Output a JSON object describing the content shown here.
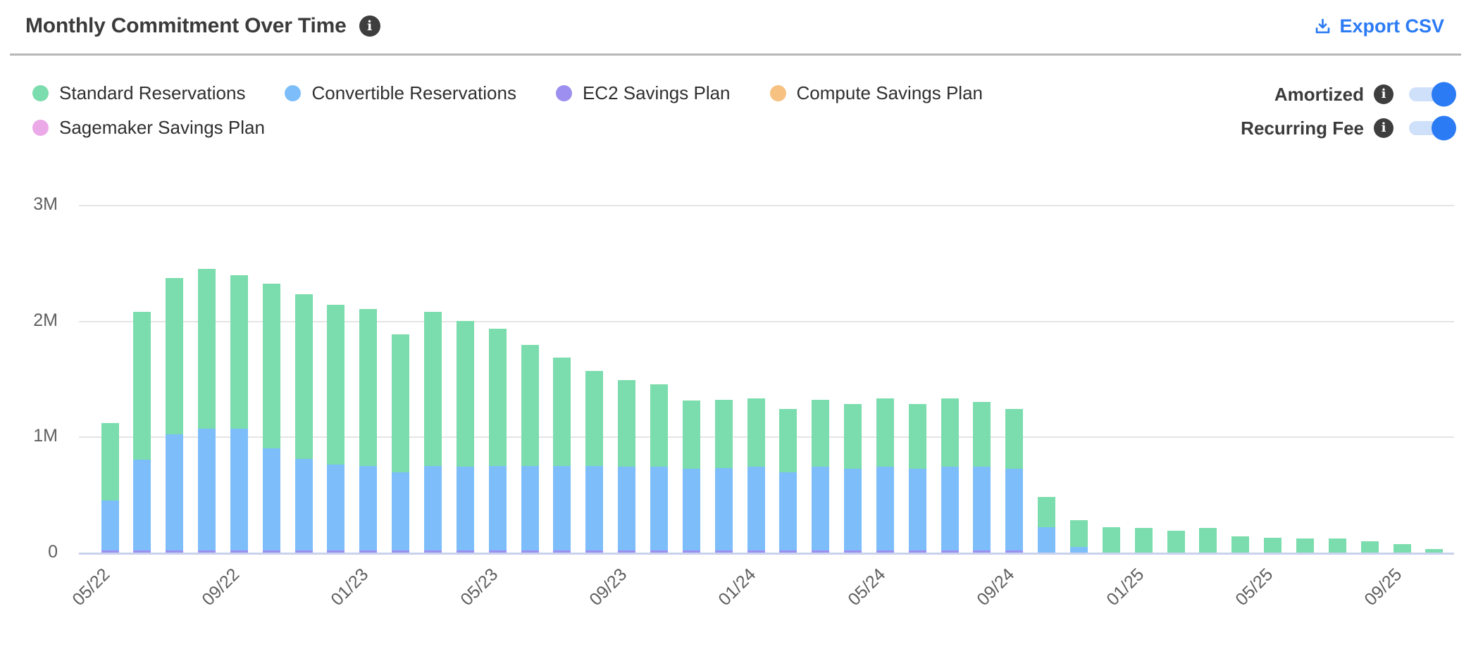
{
  "icons": {
    "info": "i"
  },
  "header": {
    "title": "Monthly Commitment Over Time",
    "export_label": "Export CSV",
    "export_color": "#2b7bf4"
  },
  "controls": {
    "toggles": [
      {
        "label": "Amortized",
        "state": "on"
      },
      {
        "label": "Recurring Fee",
        "state": "on"
      }
    ],
    "toggle_on_color": "#2b7bf4"
  },
  "chart_data": {
    "type": "bar",
    "stacked": true,
    "title": "Monthly Commitment Over Time",
    "value_unit": "millions",
    "ylim": [
      0,
      3
    ],
    "y_ticks": [
      "0",
      "1M",
      "2M",
      "3M"
    ],
    "grid": "horizontal",
    "legend_position": "top-left",
    "categories": [
      "05/22",
      "06/22",
      "07/22",
      "08/22",
      "09/22",
      "10/22",
      "11/22",
      "12/22",
      "01/23",
      "02/23",
      "03/23",
      "04/23",
      "05/23",
      "06/23",
      "07/23",
      "08/23",
      "09/23",
      "10/23",
      "11/23",
      "12/23",
      "01/24",
      "02/24",
      "03/24",
      "04/24",
      "05/24",
      "06/24",
      "07/24",
      "08/24",
      "09/24",
      "10/24",
      "11/24",
      "12/24",
      "01/25",
      "02/25",
      "03/25",
      "04/25",
      "05/25",
      "06/25",
      "07/25",
      "08/25",
      "09/25",
      "10/25"
    ],
    "x_tick_labels_shown": [
      "05/22",
      "09/22",
      "01/23",
      "05/23",
      "09/23",
      "01/24",
      "05/24",
      "09/24",
      "01/25",
      "05/25",
      "09/25"
    ],
    "stack_order_bottom_to_top": [
      "EC2 Savings Plan",
      "Convertible Reservations",
      "Standard Reservations",
      "Compute Savings Plan",
      "Sagemaker Savings Plan"
    ],
    "series": [
      {
        "name": "Standard Reservations",
        "color": "#7bdcad",
        "values": [
          0.67,
          1.28,
          1.35,
          1.38,
          1.32,
          1.42,
          1.42,
          1.38,
          1.35,
          1.19,
          1.33,
          1.26,
          1.18,
          1.04,
          0.93,
          0.82,
          0.75,
          0.71,
          0.59,
          0.59,
          0.59,
          0.55,
          0.58,
          0.56,
          0.59,
          0.56,
          0.59,
          0.56,
          0.52,
          0.26,
          0.23,
          0.22,
          0.21,
          0.19,
          0.21,
          0.14,
          0.13,
          0.12,
          0.12,
          0.1,
          0.07,
          0.03
        ]
      },
      {
        "name": "Convertible Reservations",
        "color": "#7dbefa",
        "values": [
          0.43,
          0.78,
          1.0,
          1.05,
          1.05,
          0.88,
          0.79,
          0.74,
          0.73,
          0.67,
          0.73,
          0.72,
          0.73,
          0.73,
          0.73,
          0.73,
          0.72,
          0.72,
          0.7,
          0.71,
          0.72,
          0.67,
          0.72,
          0.7,
          0.72,
          0.7,
          0.72,
          0.72,
          0.7,
          0.22,
          0.05,
          0,
          0,
          0,
          0,
          0,
          0,
          0,
          0,
          0,
          0,
          0
        ]
      },
      {
        "name": "EC2 Savings Plan",
        "color": "#9c8ff0",
        "values": [
          0.02,
          0.02,
          0.02,
          0.02,
          0.02,
          0.02,
          0.02,
          0.02,
          0.02,
          0.02,
          0.02,
          0.02,
          0.02,
          0.02,
          0.02,
          0.02,
          0.02,
          0.02,
          0.02,
          0.02,
          0.02,
          0.02,
          0.02,
          0.02,
          0.02,
          0.02,
          0.02,
          0.02,
          0.02,
          0,
          0,
          0,
          0,
          0,
          0,
          0,
          0,
          0,
          0,
          0,
          0,
          0
        ]
      },
      {
        "name": "Compute Savings Plan",
        "color": "#f6c181",
        "values": [
          0,
          0,
          0,
          0,
          0,
          0,
          0,
          0,
          0,
          0,
          0,
          0,
          0,
          0,
          0,
          0,
          0,
          0,
          0,
          0,
          0,
          0,
          0,
          0,
          0,
          0,
          0,
          0,
          0,
          0,
          0,
          0,
          0,
          0,
          0,
          0,
          0,
          0,
          0,
          0,
          0,
          0
        ]
      },
      {
        "name": "Sagemaker Savings Plan",
        "color": "#eca9e8",
        "values": [
          0,
          0,
          0,
          0,
          0,
          0,
          0,
          0,
          0,
          0,
          0,
          0,
          0,
          0,
          0,
          0,
          0,
          0,
          0,
          0,
          0,
          0,
          0,
          0,
          0,
          0,
          0,
          0,
          0,
          0,
          0,
          0,
          0,
          0,
          0,
          0,
          0,
          0,
          0,
          0,
          0,
          0
        ]
      }
    ]
  }
}
